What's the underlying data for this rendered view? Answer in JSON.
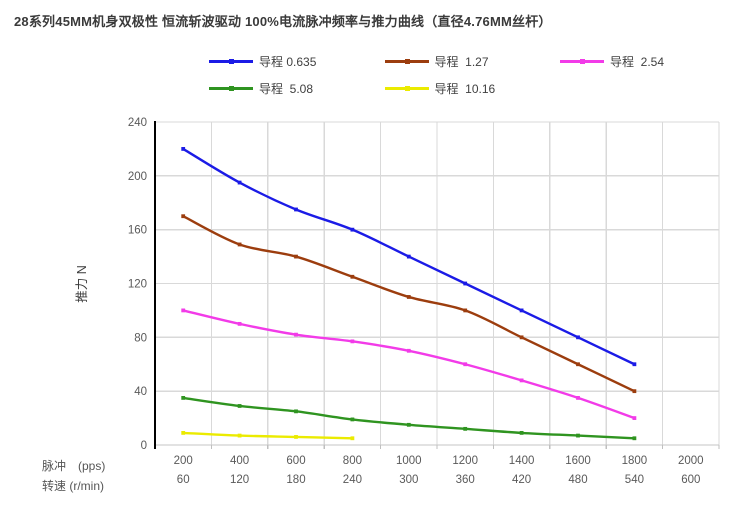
{
  "title": "28系列45MM机身双极性 恒流斩波驱动 100%电流脉冲频率与推力曲线（直径4.76MM丝杆）",
  "colors": {
    "grid": "#d9d9d9",
    "plot_border": "#d9d9d9",
    "x_axis_line": "#c6c6c6",
    "tick_mark": "#bfbfbf",
    "y_axis_line": "#000000",
    "tick_text": "#595959",
    "title_text": "#3a3a3a",
    "legend_text": "#404040"
  },
  "chart_data": {
    "type": "line",
    "title": "28系列45MM机身双极性 恒流斩波驱动 100%电流脉冲频率与推力曲线（直径4.76MM丝杆）",
    "xlabel_row1": "脉冲　(pps)",
    "xlabel_row2": "转速 (r/min)",
    "ylabel": "推力 N",
    "x_pulse_pps": [
      200,
      400,
      600,
      800,
      1000,
      1200,
      1400,
      1600,
      1800,
      2000
    ],
    "x_speed_rpm": [
      60,
      120,
      180,
      240,
      300,
      360,
      420,
      480,
      540,
      600
    ],
    "ylim": [
      0,
      240
    ],
    "yticks": [
      0,
      40,
      80,
      120,
      160,
      200,
      240
    ],
    "grid": true,
    "legend_position": "top",
    "series": [
      {
        "name": "导程 0.635",
        "color": "#1b1be6",
        "values": [
          220,
          195,
          175,
          160,
          140,
          120,
          100,
          80,
          60
        ]
      },
      {
        "name": "导程  1.27",
        "color": "#9c3d0e",
        "values": [
          170,
          149,
          140,
          125,
          110,
          100,
          80,
          60,
          40
        ]
      },
      {
        "name": "导程  2.54",
        "color": "#f23be8",
        "values": [
          100,
          90,
          82,
          77,
          70,
          60,
          48,
          35,
          20
        ]
      },
      {
        "name": "导程  5.08",
        "color": "#2f9420",
        "values": [
          35,
          29,
          25,
          19,
          15,
          12,
          9,
          7,
          5
        ]
      },
      {
        "name": "导程  10.16",
        "color": "#ebeb00",
        "values": [
          9,
          7,
          6,
          5
        ]
      }
    ]
  }
}
